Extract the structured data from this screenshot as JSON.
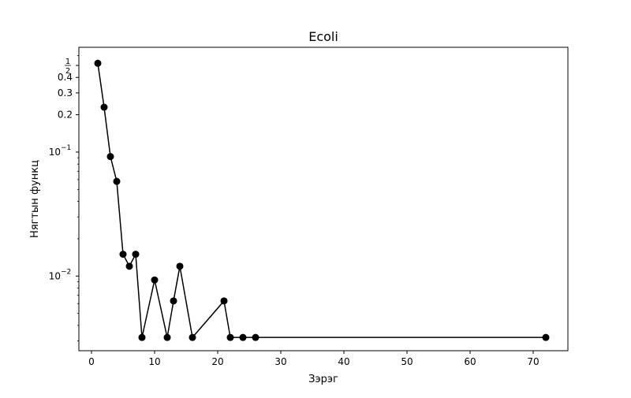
{
  "chart_data": {
    "type": "line",
    "title": "Ecoli",
    "xlabel": "Зэрэг",
    "ylabel": "Нягтын функц",
    "xlim": [
      -2,
      75.5
    ],
    "ylim": [
      0.0025,
      0.7
    ],
    "yscale": "log",
    "grid": false,
    "x_ticks": [
      {
        "value": 0,
        "label": "0"
      },
      {
        "value": 10,
        "label": "10"
      },
      {
        "value": 20,
        "label": "20"
      },
      {
        "value": 30,
        "label": "30"
      },
      {
        "value": 40,
        "label": "40"
      },
      {
        "value": 50,
        "label": "50"
      },
      {
        "value": 60,
        "label": "60"
      },
      {
        "value": 70,
        "label": "70"
      }
    ],
    "y_ticks": [
      {
        "value": 0.5,
        "label": "1/2",
        "kind": "frac",
        "num": "1",
        "den": "2"
      },
      {
        "value": 0.4,
        "label": "0.4",
        "kind": "plain"
      },
      {
        "value": 0.3,
        "label": "0.3",
        "kind": "plain"
      },
      {
        "value": 0.2,
        "label": "0.2",
        "kind": "plain"
      },
      {
        "value": 0.1,
        "label": "10^-1",
        "kind": "pow",
        "base": "10",
        "exp": "−1"
      },
      {
        "value": 0.01,
        "label": "10^-2",
        "kind": "pow",
        "base": "10",
        "exp": "−2"
      }
    ],
    "series": [
      {
        "color": "#000000",
        "x": [
          1,
          2,
          3,
          4,
          5,
          6,
          7,
          8,
          10,
          12,
          13,
          14,
          16,
          21,
          22,
          24,
          26,
          72
        ],
        "y": [
          0.52,
          0.23,
          0.092,
          0.058,
          0.015,
          0.012,
          0.015,
          0.0032,
          0.0093,
          0.0032,
          0.0063,
          0.012,
          0.0032,
          0.0063,
          0.0032,
          0.0032,
          0.0032,
          0.0032
        ]
      }
    ]
  }
}
